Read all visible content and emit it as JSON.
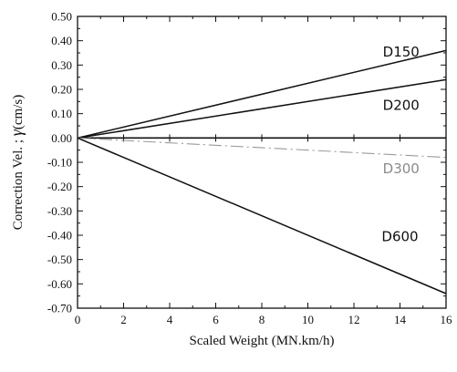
{
  "chart_data": {
    "type": "line",
    "title": "",
    "xlabel": "Scaled Weight (MN.km/h)",
    "ylabel_text": "Correction Vel. ; ",
    "ylabel_symbol": "γ",
    "ylabel_unit": "(cm/s)",
    "xlim": [
      0,
      16
    ],
    "ylim": [
      -0.7,
      0.5
    ],
    "x_ticks": [
      0,
      2,
      4,
      6,
      8,
      10,
      12,
      14,
      16
    ],
    "x_tick_labels": [
      "0",
      "2",
      "4",
      "6",
      "8",
      "10",
      "12",
      "14",
      "16"
    ],
    "y_ticks": [
      0.5,
      0.4,
      0.3,
      0.2,
      0.1,
      0.0,
      -0.1,
      -0.2,
      -0.3,
      -0.4,
      -0.5,
      -0.6,
      -0.7
    ],
    "y_tick_labels": [
      "0.50",
      "0.40",
      "0.30",
      "0.20",
      "0.10",
      "0.00",
      "-0.10",
      "-0.20",
      "-0.30",
      "-0.40",
      "-0.50",
      "-0.60",
      "-0.70"
    ],
    "grid": false,
    "series": [
      {
        "name": "D150",
        "x": [
          0,
          16
        ],
        "y": [
          0.0,
          0.36
        ],
        "color": "#111111",
        "style": "solid"
      },
      {
        "name": "D200",
        "x": [
          0,
          16
        ],
        "y": [
          0.0,
          0.24
        ],
        "color": "#111111",
        "style": "solid"
      },
      {
        "name": "D300",
        "x": [
          0,
          16
        ],
        "y": [
          0.0,
          -0.08
        ],
        "color": "#9a9a9a",
        "style": "dashdot"
      },
      {
        "name": "D600",
        "x": [
          0,
          16
        ],
        "y": [
          0.0,
          -0.64
        ],
        "color": "#111111",
        "style": "solid"
      }
    ],
    "reference_line": {
      "y": 0.0,
      "color": "#111111"
    }
  }
}
